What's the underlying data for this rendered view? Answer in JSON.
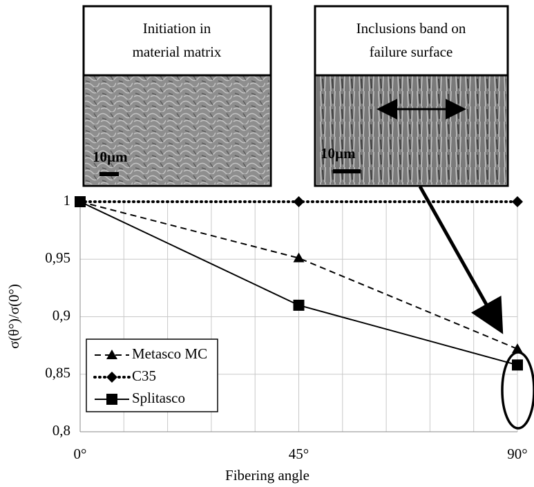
{
  "chart_data": {
    "type": "line",
    "x_label": "Fibering angle",
    "y_label": "σ(θ°)/σ(0°)",
    "x": [
      0,
      45,
      90
    ],
    "xlim": [
      0,
      90
    ],
    "xticks": [
      {
        "value": 0,
        "label": "0°"
      },
      {
        "value": 45,
        "label": "45°"
      },
      {
        "value": 90,
        "label": "90°"
      }
    ],
    "x_minor_grid": [
      9,
      18,
      27,
      36,
      54,
      63,
      72,
      81
    ],
    "ylim": [
      0.8,
      1
    ],
    "yticks": [
      {
        "value": 0.8,
        "label": "0,8"
      },
      {
        "value": 0.85,
        "label": "0,85"
      },
      {
        "value": 0.9,
        "label": "0,9"
      },
      {
        "value": 0.95,
        "label": "0,95"
      },
      1
    ],
    "grid": true,
    "legend": "lower left",
    "series": [
      {
        "name": "Metasco MC",
        "color": "#000000",
        "dash": "dashed",
        "marker": "triangle",
        "values": [
          1,
          0.951,
          0.872
        ]
      },
      {
        "name": "C35",
        "color": "#000000",
        "dash": "dotted",
        "marker": "diamond",
        "values": [
          1,
          1,
          1
        ]
      },
      {
        "name": "Splitasco",
        "color": "#000000",
        "dash": "solid",
        "marker": "square",
        "values": [
          1,
          0.91,
          0.858
        ]
      }
    ],
    "insets": [
      {
        "title": [
          "Initiation in",
          "material matrix"
        ],
        "scale": "10µm"
      },
      {
        "title": [
          "Inclusions band on",
          "failure surface"
        ],
        "scale": "10µm"
      }
    ]
  }
}
